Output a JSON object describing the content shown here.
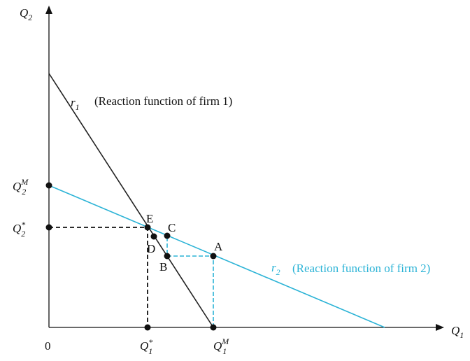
{
  "axes": {
    "y_label": {
      "main": "Q",
      "sub": "2"
    },
    "x_label": {
      "main": "Q",
      "sub": "1"
    },
    "origin": "0"
  },
  "axis_labels": {
    "q2_monopoly": {
      "main": "Q",
      "sub": "2",
      "sup": "M"
    },
    "q2_star": {
      "main": "Q",
      "sub": "2",
      "sup": "*"
    },
    "q1_star": {
      "main": "Q",
      "sub": "1",
      "sup": "*"
    },
    "q1_monopoly": {
      "main": "Q",
      "sub": "1",
      "sup": "M"
    }
  },
  "curves": [
    {
      "name": {
        "main": "r",
        "sub": "1"
      },
      "description": "(Reaction function of firm 1)"
    },
    {
      "name": {
        "main": "r",
        "sub": "2"
      },
      "description": "(Reaction function of firm 2)"
    }
  ],
  "points": [
    "E",
    "C",
    "D",
    "B",
    "A"
  ]
}
